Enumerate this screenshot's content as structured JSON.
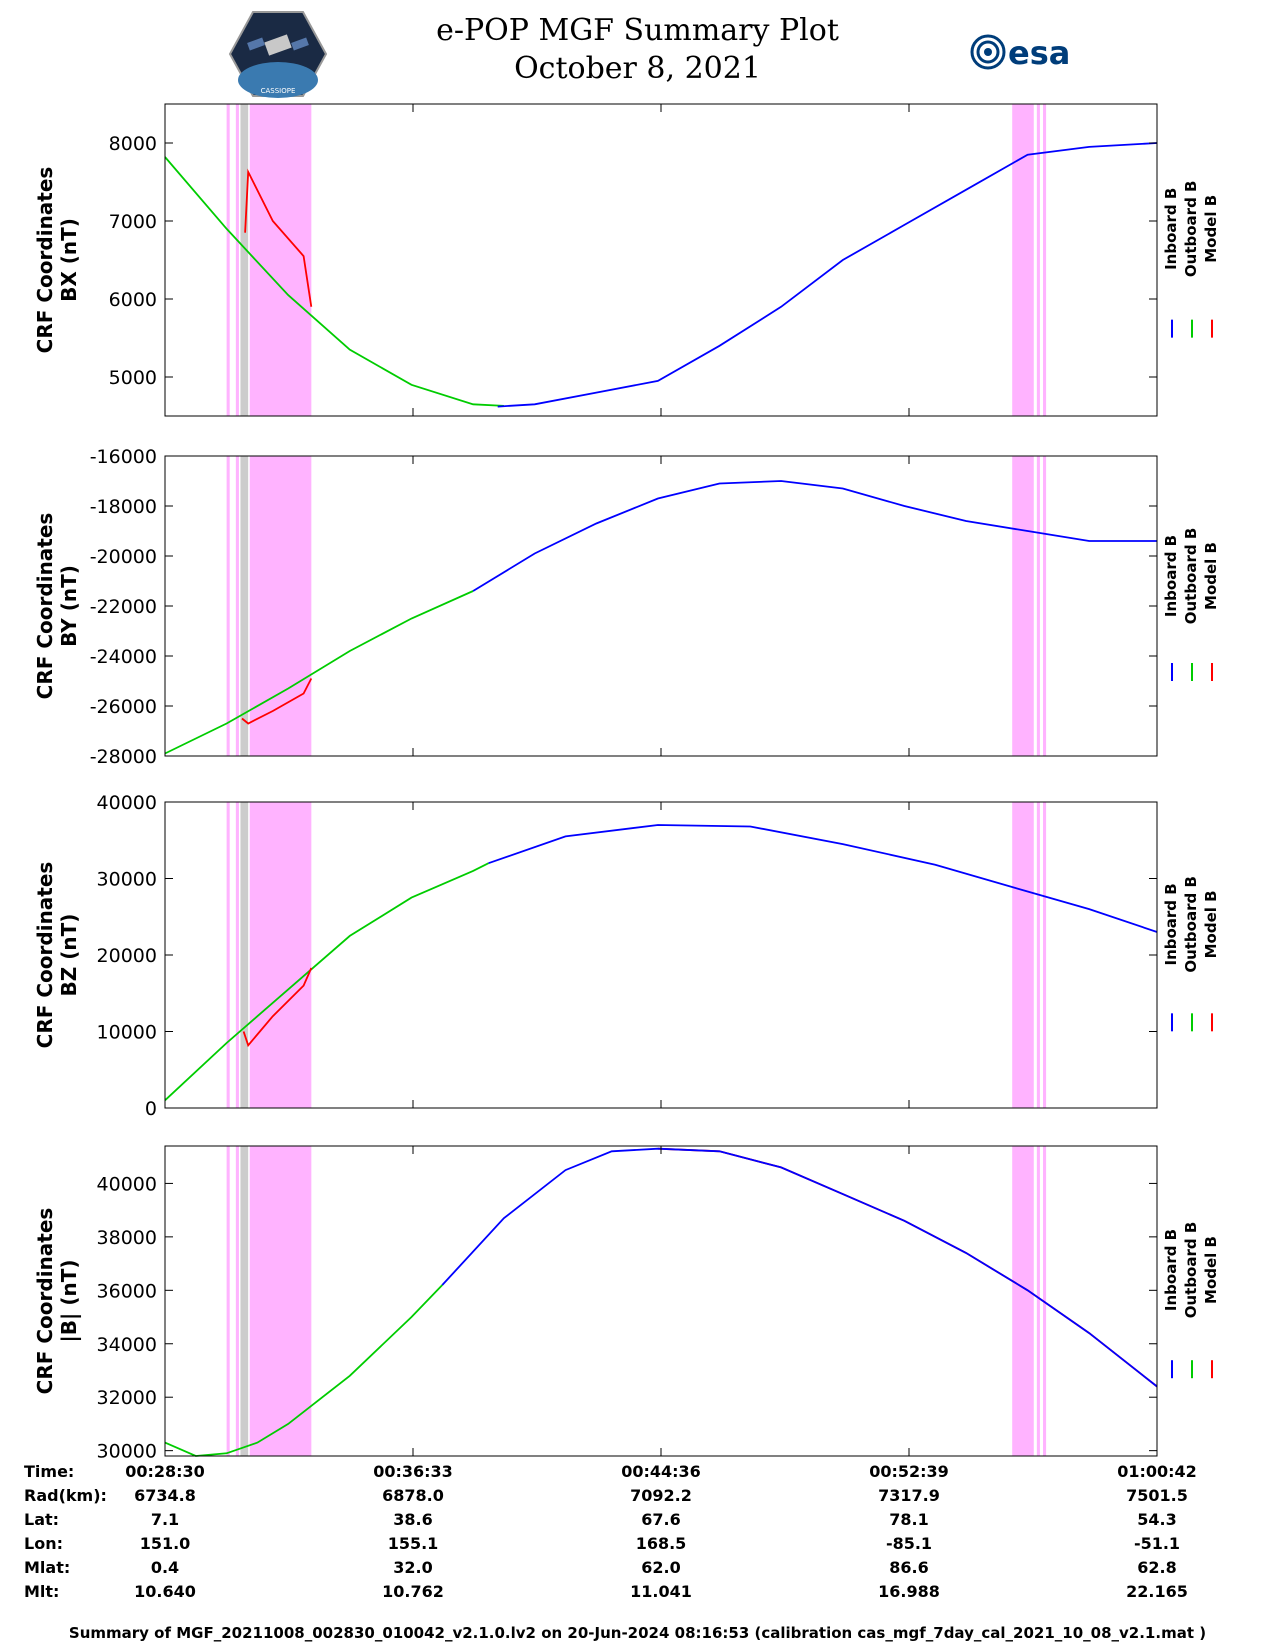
{
  "header": {
    "title": "e-POP MGF Summary Plot",
    "date": "October 8, 2021",
    "left_logo": "cassiope-satellite-logo",
    "right_logo": "esa-logo",
    "right_logo_text": "esa",
    "left_logo_text": "CASSIOPE"
  },
  "colors": {
    "inboard": "#0000ff",
    "outboard": "#00cc00",
    "model": "#ff0000",
    "highlight": "#ffb3ff",
    "gray_band": "#cccccc"
  },
  "legend": [
    "Inboard B",
    "Outboard B",
    "Model B"
  ],
  "time_ticks": [
    "00:28:30",
    "00:36:33",
    "00:44:36",
    "00:52:39",
    "01:00:42"
  ],
  "x_range_minutes": [
    0,
    32.2
  ],
  "highlight_bands_minutes": [
    {
      "from": 2.0,
      "to": 2.1
    },
    {
      "from": 2.3,
      "to": 2.4
    },
    {
      "from": 2.75,
      "to": 4.75
    },
    {
      "from": 27.5,
      "to": 28.2
    },
    {
      "from": 28.3,
      "to": 28.4
    },
    {
      "from": 28.5,
      "to": 28.6
    }
  ],
  "gray_band_minutes": {
    "from": 2.45,
    "to": 2.7
  },
  "chart_data": [
    {
      "type": "line",
      "ylabel": "CRF Coordinates\nBX (nT)",
      "ylabel_lines": [
        "CRF Coordinates",
        "BX (nT)"
      ],
      "yticks": [
        "5000",
        "6000",
        "7000",
        "8000"
      ],
      "ylim": [
        4500,
        8500
      ],
      "grid": false,
      "legend_position": "right",
      "series": [
        {
          "name": "Outboard B",
          "x": [
            0,
            2,
            4,
            6,
            8,
            10,
            11
          ],
          "values": [
            7820,
            6900,
            6050,
            5350,
            4900,
            4650,
            4630
          ]
        },
        {
          "name": "Model B",
          "x": [
            2.6,
            2.7,
            3.5,
            4.5,
            4.75
          ],
          "values": [
            6850,
            7630,
            7000,
            6550,
            5900
          ]
        },
        {
          "name": "Inboard B",
          "x": [
            10.8,
            12,
            14,
            16,
            18,
            20,
            22,
            24,
            26,
            28,
            30,
            32.2
          ],
          "values": [
            4620,
            4650,
            4800,
            4950,
            5400,
            5900,
            6500,
            6950,
            7400,
            7850,
            7950,
            8000
          ]
        }
      ]
    },
    {
      "type": "line",
      "ylabel_lines": [
        "CRF Coordinates",
        "BY (nT)"
      ],
      "yticks": [
        "-28000",
        "-26000",
        "-24000",
        "-22000",
        "-20000",
        "-18000",
        "-16000"
      ],
      "ylim": [
        -28000,
        -16000
      ],
      "grid": false,
      "legend_position": "right",
      "series": [
        {
          "name": "Outboard B",
          "x": [
            0,
            2,
            4,
            6,
            8,
            10
          ],
          "values": [
            -27900,
            -26700,
            -25300,
            -23800,
            -22500,
            -21400
          ]
        },
        {
          "name": "Model B",
          "x": [
            2.5,
            2.7,
            3.5,
            4.5,
            4.75
          ],
          "values": [
            -26500,
            -26700,
            -26200,
            -25500,
            -24900
          ]
        },
        {
          "name": "Inboard B",
          "x": [
            10,
            12,
            14,
            16,
            18,
            20,
            22,
            24,
            26,
            28,
            30,
            32.2
          ],
          "values": [
            -21400,
            -19900,
            -18700,
            -17700,
            -17100,
            -17000,
            -17300,
            -18000,
            -18600,
            -19000,
            -19400,
            -19400
          ]
        }
      ]
    },
    {
      "type": "line",
      "ylabel_lines": [
        "CRF Coordinates",
        "BZ (nT)"
      ],
      "yticks": [
        "0",
        "10000",
        "20000",
        "30000",
        "40000"
      ],
      "ylim": [
        0,
        40000
      ],
      "grid": false,
      "legend_position": "right",
      "series": [
        {
          "name": "Outboard B",
          "x": [
            0,
            2,
            4,
            6,
            8,
            10,
            10.5
          ],
          "values": [
            1000,
            8500,
            15500,
            22500,
            27500,
            31000,
            32000
          ]
        },
        {
          "name": "Model B",
          "x": [
            2.55,
            2.7,
            3.5,
            4.5,
            4.75
          ],
          "values": [
            10000,
            8200,
            12000,
            16000,
            18300
          ]
        },
        {
          "name": "Inboard B",
          "x": [
            10.5,
            13,
            16,
            19,
            22,
            25,
            28,
            30,
            32.2
          ],
          "values": [
            32000,
            35500,
            37000,
            36800,
            34500,
            31800,
            28300,
            26000,
            23000
          ]
        }
      ]
    },
    {
      "type": "line",
      "ylabel_lines": [
        "CRF Coordinates",
        "|B| (nT)"
      ],
      "yticks": [
        "30000",
        "32000",
        "34000",
        "36000",
        "38000",
        "40000"
      ],
      "ylim": [
        29800,
        41400
      ],
      "grid": false,
      "legend_position": "right",
      "series": [
        {
          "name": "Outboard B",
          "x": [
            0,
            1,
            2,
            3,
            4,
            6,
            8,
            9
          ],
          "values": [
            30300,
            29800,
            29900,
            30300,
            31000,
            32800,
            35000,
            36200
          ]
        },
        {
          "name": "Model B",
          "x": [
            16,
            18,
            20,
            22,
            24,
            26,
            28,
            30,
            32.2
          ],
          "values": [
            41300,
            41200,
            40600,
            39600,
            38600,
            37400,
            36000,
            34400,
            32400
          ]
        },
        {
          "name": "Inboard B",
          "x": [
            9,
            11,
            13,
            14.5,
            16,
            18,
            20,
            22,
            24,
            26,
            28,
            30,
            32.2
          ],
          "values": [
            36200,
            38700,
            40500,
            41200,
            41300,
            41200,
            40600,
            39600,
            38600,
            37400,
            36000,
            34400,
            32400
          ]
        }
      ]
    }
  ],
  "info_table": {
    "labels": [
      "Time:",
      "Rad(km):",
      "Lat:",
      "Lon:",
      "Mlat:",
      "Mlt:"
    ],
    "rows": [
      [
        "00:28:30",
        "00:36:33",
        "00:44:36",
        "00:52:39",
        "01:00:42"
      ],
      [
        "6734.8",
        "6878.0",
        "7092.2",
        "7317.9",
        "7501.5"
      ],
      [
        "7.1",
        "38.6",
        "67.6",
        "78.1",
        "54.3"
      ],
      [
        "151.0",
        "155.1",
        "168.5",
        "-85.1",
        "-51.1"
      ],
      [
        "0.4",
        "32.0",
        "62.0",
        "86.6",
        "62.8"
      ],
      [
        "10.640",
        "10.762",
        "11.041",
        "16.988",
        "22.165"
      ]
    ]
  },
  "footer": "Summary of MGF_20211008_002830_010042_v2.1.0.lv2 on 20-Jun-2024 08:16:53 (calibration cas_mgf_7day_cal_2021_10_08_v2.1.mat )"
}
